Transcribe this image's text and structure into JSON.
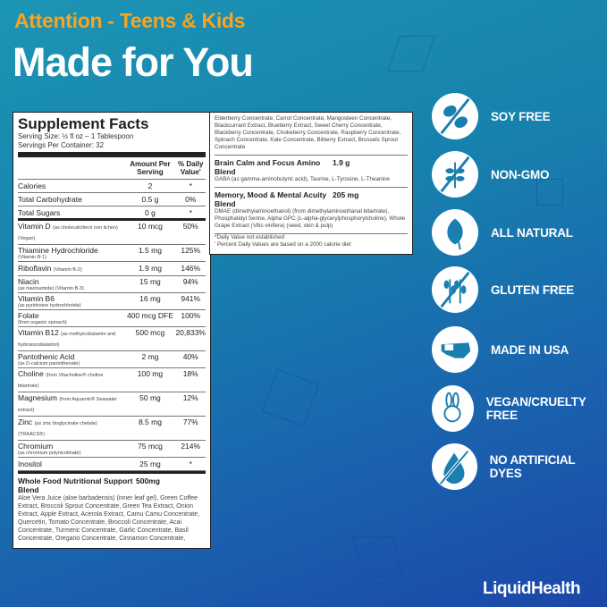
{
  "header": {
    "subtitle": "Attention - Teens & Kids",
    "title": "Made for You"
  },
  "facts": {
    "title": "Supplement Facts",
    "serving_size": "Serving Size: ½ fl oz – 1 Tablespoon",
    "servings_per_container": "Servings Per Container: 32",
    "col_amount": "Amount Per Serving",
    "col_dv": "% Daily Value'",
    "rows": [
      {
        "name": "Calories",
        "note": "",
        "amount": "2",
        "dv": "*"
      },
      {
        "name": "Total Carbohydrate",
        "note": "",
        "amount": "0.5 g",
        "dv": "0%"
      },
      {
        "name": "Total Sugars",
        "note": "",
        "amount": "0 g",
        "dv": "*"
      },
      {
        "name": "Vitamin D",
        "note": "(as cholecalciferol rom lichen) (Vegan)",
        "amount": "10 mcg",
        "dv": "50%"
      },
      {
        "name": "Thiamine Hydrochloride",
        "note": "(Vitamin B-1)",
        "amount": "1.5 mg",
        "dv": "125%"
      },
      {
        "name": "Riboflavin",
        "note": "(Vitamin B-2)",
        "amount": "1.9 mg",
        "dv": "146%"
      },
      {
        "name": "Niacin",
        "note": "(as niacinamide) (Vitamin B-3)",
        "amount": "15 mg",
        "dv": "94%"
      },
      {
        "name": "Vitamin B6",
        "note": "(as pyridoxine hydrochloride)",
        "amount": "16 mg",
        "dv": "941%"
      },
      {
        "name": "Folate",
        "note": "(from organic spinach)",
        "amount": "400 mcg DFE",
        "dv": "100%"
      },
      {
        "name": "Vitamin B12",
        "note": "(as methylcobalamin and hydroxocobalamin)",
        "amount": "500 mcg",
        "dv": "20,833%"
      },
      {
        "name": "Pantothenic Acid",
        "note": "(as D-calcium pantothenate)",
        "amount": "2 mg",
        "dv": "40%"
      },
      {
        "name": "Choline",
        "note": "(from Vitacholine® choline bitartrate)",
        "amount": "100 mg",
        "dv": "18%"
      },
      {
        "name": "Magnesium",
        "note": "(from Aquamin® Seawater extract)",
        "amount": "50 mg",
        "dv": "12%"
      },
      {
        "name": "Zinc",
        "note": "(as zinc bisglycinate chelate) (TRAACS®)",
        "amount": "8.5 mg",
        "dv": "77%"
      },
      {
        "name": "Chromium",
        "note": "(as chromium polynicotinate)",
        "amount": "75 mcg",
        "dv": "214%"
      },
      {
        "name": "Inositol",
        "note": "",
        "amount": "25 mg",
        "dv": "*"
      }
    ],
    "blends": [
      {
        "name": "Whole Food Nutritional Support Blend",
        "amount": "500mg",
        "ingredients": "Aloe Vera Juice (aloe barbadensis) (inner leaf gel), Green Coffee Extract, Broccoli Sprout Concentrate, Green Tea Extract, Onion Extract, Apple Extract, Acerola Extract, Camu Camu Concentrate, Quercetin, Tomato Concentrate, Broccoli Concentrate, Acai Concentrate, Turmeric Concentrate, Garlic Concentrate, Basil Concentrate, Oregano Concentrate, Cinnamon Concentrate,"
      },
      {
        "name": "",
        "amount": "",
        "ingredients": "Elderberry Concentrate, Carrot Concentrate, Mangosteen Concentrate, Blackcurrant Extract, Blueberry Extract, Sweet Cherry Concentrate, Blackberry Concentrate, Chokeberry Concentrate, Raspberry Concentrate, Spinach Concentrate, Kale Concentrate, Bilberry Extract, Brussels Sprout Concentrate"
      },
      {
        "name": "Brain Calm and Focus Amino Blend",
        "amount": "1.9 g",
        "ingredients": "GABA (as gamma-aminobutyric acid), Taurine, L-Tyrosine, L-Theanine"
      },
      {
        "name": "Memory, Mood & Mental Acuity Blend",
        "amount": "205 mg",
        "ingredients": "DMAE (dimethylaminoethanol) (from dimethylaminoethanal bitartrate), Phosphatidyl Serine, Alpha GPC (L-alpha-glycerylphosphorylcholine), Whole Grape Extract (Vitis vinifera) (seed, skin & pulp)"
      }
    ],
    "footnote1": "*Daily Value not established",
    "footnote2": "' Percent Daily Values are based on a 2000 calorie diet"
  },
  "badges": [
    {
      "icon": "soy-free-icon",
      "label": "SOY FREE"
    },
    {
      "icon": "non-gmo-icon",
      "label": "NON-GMO"
    },
    {
      "icon": "leaf-icon",
      "label": "ALL NATURAL"
    },
    {
      "icon": "gluten-free-icon",
      "label": "GLUTEN FREE"
    },
    {
      "icon": "usa-map-icon",
      "label": "MADE IN USA"
    },
    {
      "icon": "bunny-icon",
      "label": "VEGAN/CRUELTY FREE"
    },
    {
      "icon": "no-dye-drop-icon",
      "label": "NO ARTIFICIAL DYES"
    }
  ],
  "brand": {
    "logo": "LiquidHealth"
  },
  "colors": {
    "accent": "#f7a520",
    "bg_top": "#1c95b4",
    "bg_bottom": "#1b47a8",
    "icon": "#1a7fae"
  }
}
